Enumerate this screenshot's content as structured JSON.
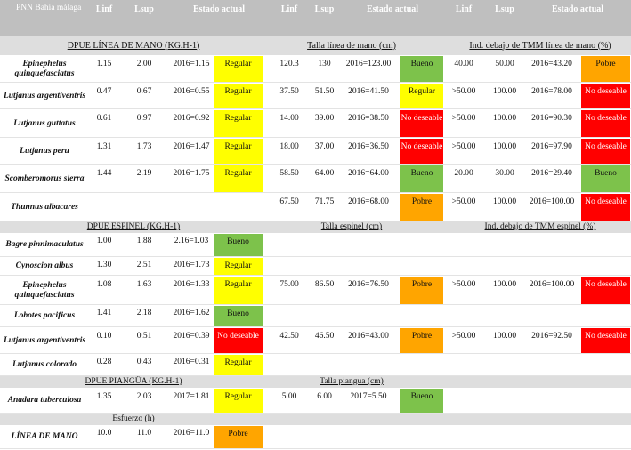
{
  "header": {
    "site": "PNN Bahía málaga",
    "cols": [
      "Linf",
      "Lsup",
      "Estado actual",
      "Linf",
      "Lsup",
      "Estado actual",
      "Linf",
      "Lsup",
      "Estado actual"
    ]
  },
  "bands": [
    {
      "a": "DPUE LÍNEA DE MANO (KG.H-1)",
      "b": "Talla línea de mano (cm)",
      "c": "Ind. debajo de TMM línea de mano (%)"
    },
    {
      "a": "DPUE ESPINEL (KG.H-1)",
      "b": "Talla espinel (cm)",
      "c": "Ind. debajo de TMM espinel (%)"
    },
    {
      "a": "DPUE PIANGÜA (KG.H-1)",
      "b": "Talla piangua (cm)",
      "c": ""
    },
    {
      "a": "Esfuerzo (h)",
      "b": "",
      "c": ""
    }
  ],
  "rows": [
    {
      "name": "Epinephelus quinquefasciatus",
      "g1": [
        "1.15",
        "2.00",
        "2016=1.15",
        "Regular"
      ],
      "g2": [
        "120.3",
        "130",
        "2016=123.00",
        "Bueno"
      ],
      "g3": [
        "40.00",
        "50.00",
        "2016=43.20",
        "Pobre"
      ]
    },
    {
      "name": "Lutjanus argentiventris",
      "g1": [
        "0.47",
        "0.67",
        "2016=0.55",
        "Regular"
      ],
      "g2": [
        "37.50",
        "51.50",
        "2016=41.50",
        "Regular"
      ],
      "g3": [
        ">50.00",
        "100.00",
        "2016=78.00",
        "No deseable"
      ]
    },
    {
      "name": "Lutjanus guttatus",
      "g1": [
        "0.61",
        "0.97",
        "2016=0.92",
        "Regular"
      ],
      "g2": [
        "14.00",
        "39.00",
        "2016=38.50",
        "No deseable"
      ],
      "g3": [
        ">50.00",
        "100.00",
        "2016=90.30",
        "No deseable"
      ]
    },
    {
      "name": "Lutjanus peru",
      "g1": [
        "1.31",
        "1.73",
        "2016=1.47",
        "Regular"
      ],
      "g2": [
        "18.00",
        "37.00",
        "2016=36.50",
        "No deseable"
      ],
      "g3": [
        ">50.00",
        "100.00",
        "2016=97.90",
        "No deseable"
      ]
    },
    {
      "name": "Scomberomorus sierra",
      "g1": [
        "1.44",
        "2.19",
        "2016=1.75",
        "Regular"
      ],
      "g2": [
        "58.50",
        "64.00",
        "2016=64.00",
        "Bueno"
      ],
      "g3": [
        "20.00",
        "30.00",
        "2016=29.40",
        "Bueno"
      ]
    },
    {
      "name": "Thunnus albacares",
      "g1": [
        "",
        "",
        "",
        ""
      ],
      "g2": [
        "67.50",
        "71.75",
        "2016=68.00",
        "Pobre"
      ],
      "g3": [
        ">50.00",
        "100.00",
        "2016=100.00",
        "No deseable"
      ]
    },
    {
      "name": "Bagre pinnimaculatus",
      "g1": [
        "1.00",
        "1.88",
        "2.16=1.03",
        "Bueno"
      ],
      "g2": [
        "",
        "",
        "",
        ""
      ],
      "g3": [
        "",
        "",
        "",
        ""
      ]
    },
    {
      "name": "Cynoscion albus",
      "g1": [
        "1.30",
        "2.51",
        "2016=1.73",
        "Regular"
      ],
      "g2": [
        "",
        "",
        "",
        ""
      ],
      "g3": [
        "",
        "",
        "",
        ""
      ]
    },
    {
      "name": "Epinephelus quinquefasciatus",
      "g1": [
        "1.08",
        "1.63",
        "2016=1.33",
        "Regular"
      ],
      "g2": [
        "75.00",
        "86.50",
        "2016=76.50",
        "Pobre"
      ],
      "g3": [
        ">50.00",
        "100.00",
        "2016=100.00",
        "No deseable"
      ]
    },
    {
      "name": "Lobotes pacificus",
      "g1": [
        "1.41",
        "2.18",
        "2016=1.62",
        "Bueno"
      ],
      "g2": [
        "",
        "",
        "",
        ""
      ],
      "g3": [
        "",
        "",
        "",
        ""
      ]
    },
    {
      "name": "Lutjanus argentiventris",
      "g1": [
        "0.10",
        "0.51",
        "2016=0.39",
        "No deseable"
      ],
      "g2": [
        "42.50",
        "46.50",
        "2016=43.00",
        "Pobre"
      ],
      "g3": [
        ">50.00",
        "100.00",
        "2016=92.50",
        "No deseable"
      ]
    },
    {
      "name": "Lutjanus colorado",
      "g1": [
        "0.28",
        "0.43",
        "2016=0.31",
        "Regular"
      ],
      "g2": [
        "",
        "",
        "",
        ""
      ],
      "g3": [
        "",
        "",
        "",
        ""
      ]
    },
    {
      "name": "Anadara tuberculosa",
      "g1": [
        "1.35",
        "2.03",
        "2017=1.81",
        "Regular"
      ],
      "g2": [
        "5.00",
        "6.00",
        "2017=5.50",
        "Bueno"
      ],
      "g3": [
        "",
        "",
        "",
        ""
      ]
    },
    {
      "name": "LÍNEA DE MANO",
      "g1": [
        "10.0",
        "11.0",
        "2016=11.0",
        "Pobre"
      ],
      "g2": [
        "",
        "",
        "",
        ""
      ],
      "g3": [
        "",
        "",
        "",
        ""
      ]
    }
  ]
}
